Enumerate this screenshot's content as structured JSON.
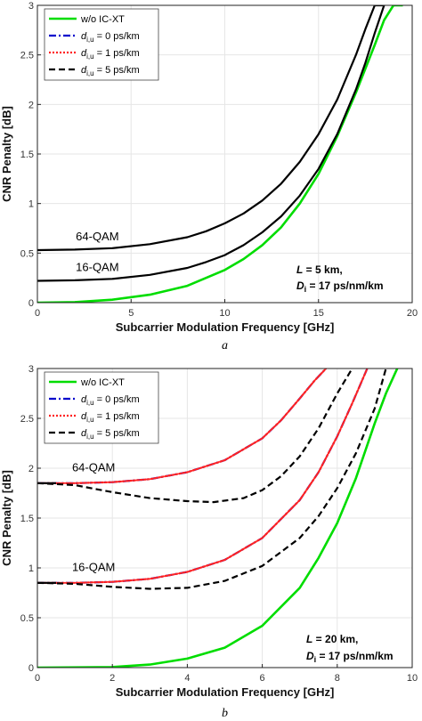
{
  "colors": {
    "wo": "#00dd00",
    "d0": "#0000cc",
    "d1": "#ff2222",
    "d5": "#000000",
    "black": "#000000",
    "grid": "#e6e6e6"
  },
  "chart_data": [
    {
      "type": "line",
      "caption": "a",
      "xlabel": "Subcarrier Modulation Frequency [GHz]",
      "ylabel": "CNR Penalty [dB]",
      "xlim": [
        0,
        20
      ],
      "ylim": [
        0,
        3
      ],
      "xticks": [
        0,
        5,
        10,
        15,
        20
      ],
      "yticks": [
        0,
        0.5,
        1,
        1.5,
        2,
        2.5,
        3
      ],
      "xtick_labels": [
        "0",
        "5",
        "10",
        "15",
        "20"
      ],
      "ytick_labels": [
        "0",
        "0.5",
        "1",
        "1.5",
        "2",
        "2.5",
        "3"
      ],
      "grid": true,
      "legend_position": "top-left",
      "legend": [
        {
          "text_pre": "w/o IC-XT",
          "sub": "",
          "text_post": "",
          "style": "solid",
          "color_key": "wo"
        },
        {
          "text_pre": "d",
          "sub": "i,u",
          "text_post": " = 0 ps/km",
          "style": "dashdot",
          "color_key": "d0"
        },
        {
          "text_pre": "d",
          "sub": "i,u",
          "text_post": " = 1 ps/km",
          "style": "dotted",
          "color_key": "d1"
        },
        {
          "text_pre": "d",
          "sub": "i,u",
          "text_post": " = 5 ps/km",
          "style": "dashed",
          "color_key": "d5"
        }
      ],
      "annotations": {
        "qam64": "64-QAM",
        "qam16": "16-QAM",
        "L_label": "L",
        "L_value": " =  5 km,",
        "D_label": "D",
        "D_sub": "i",
        "D_value": " =  17 ps/nm/km"
      },
      "series": [
        {
          "name": "w/o IC-XT",
          "style": "solid",
          "color_key": "wo",
          "x": [
            0,
            2,
            4,
            6,
            8,
            10,
            11,
            12,
            13,
            14,
            15,
            16,
            17,
            18,
            18.5,
            19,
            19.5
          ],
          "y": [
            0,
            0.005,
            0.03,
            0.08,
            0.17,
            0.33,
            0.44,
            0.58,
            0.76,
            1.0,
            1.3,
            1.68,
            2.12,
            2.6,
            2.85,
            3.0,
            3.0
          ]
        },
        {
          "name": "16-QAM",
          "style": "solid",
          "color_key": "black",
          "group": "16-QAM",
          "x": [
            0,
            2,
            4,
            6,
            8,
            9,
            10,
            11,
            12,
            13,
            14,
            15,
            16,
            17,
            17.5,
            18,
            18.5
          ],
          "y": [
            0.22,
            0.225,
            0.24,
            0.28,
            0.35,
            0.41,
            0.48,
            0.58,
            0.71,
            0.87,
            1.08,
            1.35,
            1.7,
            2.15,
            2.42,
            2.72,
            3.0
          ]
        },
        {
          "name": "64-QAM",
          "style": "solid",
          "color_key": "black",
          "group": "64-QAM",
          "x": [
            0,
            2,
            4,
            6,
            8,
            9,
            10,
            11,
            12,
            13,
            14,
            15,
            16,
            17,
            17.5,
            18,
            18.5
          ],
          "y": [
            0.53,
            0.535,
            0.55,
            0.59,
            0.66,
            0.72,
            0.8,
            0.9,
            1.03,
            1.2,
            1.42,
            1.7,
            2.05,
            2.5,
            2.76,
            3.0,
            3.0
          ]
        }
      ]
    },
    {
      "type": "line",
      "caption": "b",
      "xlabel": "Subcarrier Modulation Frequency [GHz]",
      "ylabel": "CNR Penalty [dB]",
      "xlim": [
        0,
        10
      ],
      "ylim": [
        0,
        3
      ],
      "xticks": [
        0,
        2,
        4,
        6,
        8,
        10
      ],
      "yticks": [
        0,
        0.5,
        1,
        1.5,
        2,
        2.5,
        3
      ],
      "xtick_labels": [
        "0",
        "2",
        "4",
        "6",
        "8",
        "10"
      ],
      "ytick_labels": [
        "0",
        "0.5",
        "1",
        "1.5",
        "2",
        "2.5",
        "3"
      ],
      "grid": true,
      "legend_position": "top-left",
      "legend": [
        {
          "text_pre": "w/o IC-XT",
          "sub": "",
          "text_post": "",
          "style": "solid",
          "color_key": "wo"
        },
        {
          "text_pre": "d",
          "sub": "i,u",
          "text_post": " = 0 ps/km",
          "style": "dashdot",
          "color_key": "d0"
        },
        {
          "text_pre": "d",
          "sub": "i,u",
          "text_post": " = 1 ps/km",
          "style": "dotted",
          "color_key": "d1"
        },
        {
          "text_pre": "d",
          "sub": "i,u",
          "text_post": " = 5 ps/km",
          "style": "dashed",
          "color_key": "d5"
        }
      ],
      "annotations": {
        "qam64": "64-QAM",
        "qam16": "16-QAM",
        "L_label": "L",
        "L_value": " =  20 km,",
        "D_label": "D",
        "D_sub": "i",
        "D_value": " =  17 ps/nm/km"
      },
      "series": [
        {
          "name": "w/o IC-XT",
          "style": "solid",
          "color_key": "wo",
          "x": [
            0,
            2,
            3,
            4,
            5,
            6,
            7,
            7.5,
            8,
            8.5,
            9,
            9.3,
            9.6
          ],
          "y": [
            0,
            0.005,
            0.03,
            0.09,
            0.2,
            0.42,
            0.8,
            1.1,
            1.45,
            1.9,
            2.45,
            2.75,
            3.0
          ]
        },
        {
          "name": "64-QAM d=0",
          "style": "dashdot",
          "color_key": "d0",
          "group": "64-QAM",
          "x": [
            0,
            1,
            2,
            3,
            4,
            5,
            6,
            6.5,
            7,
            7.4,
            7.7
          ],
          "y": [
            1.85,
            1.85,
            1.86,
            1.89,
            1.96,
            2.08,
            2.3,
            2.48,
            2.7,
            2.88,
            3.0
          ]
        },
        {
          "name": "64-QAM d=1",
          "style": "dotted",
          "color_key": "d1",
          "group": "64-QAM",
          "x": [
            0,
            1,
            2,
            3,
            4,
            5,
            6,
            6.5,
            7,
            7.4,
            7.7
          ],
          "y": [
            1.85,
            1.85,
            1.86,
            1.89,
            1.96,
            2.08,
            2.3,
            2.48,
            2.7,
            2.88,
            3.0
          ]
        },
        {
          "name": "64-QAM d=5",
          "style": "dashed",
          "color_key": "d5",
          "group": "64-QAM",
          "x": [
            0,
            1,
            2,
            3,
            4,
            4.7,
            5.5,
            6,
            6.5,
            7,
            7.5,
            8,
            8.4
          ],
          "y": [
            1.85,
            1.83,
            1.76,
            1.7,
            1.67,
            1.66,
            1.7,
            1.78,
            1.92,
            2.12,
            2.4,
            2.75,
            3.0
          ]
        },
        {
          "name": "16-QAM d=0",
          "style": "dashdot",
          "color_key": "d0",
          "group": "16-QAM",
          "x": [
            0,
            1,
            2,
            3,
            4,
            5,
            6,
            7,
            7.5,
            8,
            8.4,
            8.8
          ],
          "y": [
            0.85,
            0.85,
            0.86,
            0.89,
            0.96,
            1.08,
            1.3,
            1.68,
            1.96,
            2.32,
            2.65,
            3.0
          ]
        },
        {
          "name": "16-QAM d=1",
          "style": "dotted",
          "color_key": "d1",
          "group": "16-QAM",
          "x": [
            0,
            1,
            2,
            3,
            4,
            5,
            6,
            7,
            7.5,
            8,
            8.4,
            8.8
          ],
          "y": [
            0.85,
            0.85,
            0.86,
            0.89,
            0.96,
            1.08,
            1.3,
            1.68,
            1.96,
            2.32,
            2.65,
            3.0
          ]
        },
        {
          "name": "16-QAM d=5",
          "style": "dashed",
          "color_key": "d5",
          "group": "16-QAM",
          "x": [
            0,
            1,
            2,
            3,
            4,
            5,
            6,
            7,
            7.5,
            8,
            8.5,
            9,
            9.3
          ],
          "y": [
            0.85,
            0.84,
            0.81,
            0.79,
            0.8,
            0.87,
            1.02,
            1.3,
            1.52,
            1.8,
            2.15,
            2.6,
            3.0
          ]
        },
        {
          "name": "64-QAM solid",
          "style": "solid",
          "color_key": "black",
          "group": "64-QAM",
          "x": [
            0,
            0.5
          ],
          "y": [
            1.85,
            1.85
          ]
        },
        {
          "name": "16-QAM solid",
          "style": "solid",
          "color_key": "black",
          "group": "16-QAM",
          "x": [
            0,
            0.5
          ],
          "y": [
            0.85,
            0.85
          ]
        }
      ]
    }
  ]
}
